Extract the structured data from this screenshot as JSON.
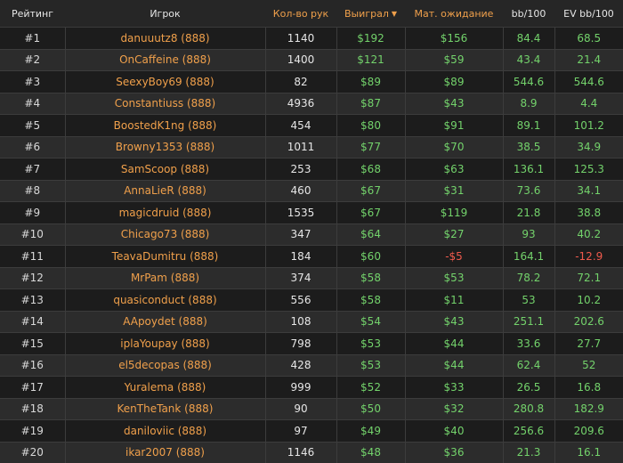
{
  "table": {
    "headers": {
      "rank": "Рейтинг",
      "player": "Игрок",
      "hands": "Кол-во рук",
      "won": "Выиграл",
      "sort_arrow": "▼",
      "ev": "Мат. ожидание",
      "bb100": "bb/100",
      "evbb100": "EV bb/100"
    },
    "colors": {
      "accent_orange": "#f0a04b",
      "positive_green": "#73d26b",
      "negative_red": "#ee5a4c"
    },
    "rows": [
      {
        "rank": "#1",
        "player": "danuuutz8 (888)",
        "hands": "1140",
        "won": "$192",
        "ev": "$156",
        "bb100": "84.4",
        "evbb100": "68.5"
      },
      {
        "rank": "#2",
        "player": "OnCaffeine (888)",
        "hands": "1400",
        "won": "$121",
        "ev": "$59",
        "bb100": "43.4",
        "evbb100": "21.4"
      },
      {
        "rank": "#3",
        "player": "SeexyBoy69 (888)",
        "hands": "82",
        "won": "$89",
        "ev": "$89",
        "bb100": "544.6",
        "evbb100": "544.6"
      },
      {
        "rank": "#4",
        "player": "Constantiuss (888)",
        "hands": "4936",
        "won": "$87",
        "ev": "$43",
        "bb100": "8.9",
        "evbb100": "4.4"
      },
      {
        "rank": "#5",
        "player": "BoostedK1ng (888)",
        "hands": "454",
        "won": "$80",
        "ev": "$91",
        "bb100": "89.1",
        "evbb100": "101.2"
      },
      {
        "rank": "#6",
        "player": "Browny1353 (888)",
        "hands": "1011",
        "won": "$77",
        "ev": "$70",
        "bb100": "38.5",
        "evbb100": "34.9"
      },
      {
        "rank": "#7",
        "player": "SamScoop (888)",
        "hands": "253",
        "won": "$68",
        "ev": "$63",
        "bb100": "136.1",
        "evbb100": "125.3"
      },
      {
        "rank": "#8",
        "player": "AnnaLieR (888)",
        "hands": "460",
        "won": "$67",
        "ev": "$31",
        "bb100": "73.6",
        "evbb100": "34.1"
      },
      {
        "rank": "#9",
        "player": "magicdruid (888)",
        "hands": "1535",
        "won": "$67",
        "ev": "$119",
        "bb100": "21.8",
        "evbb100": "38.8"
      },
      {
        "rank": "#10",
        "player": "Chicago73 (888)",
        "hands": "347",
        "won": "$64",
        "ev": "$27",
        "bb100": "93",
        "evbb100": "40.2"
      },
      {
        "rank": "#11",
        "player": "TeavaDumitru (888)",
        "hands": "184",
        "won": "$60",
        "ev": "-$5",
        "bb100": "164.1",
        "evbb100": "-12.9",
        "ev_negative": true,
        "evbb100_negative": true
      },
      {
        "rank": "#12",
        "player": "MrPam (888)",
        "hands": "374",
        "won": "$58",
        "ev": "$53",
        "bb100": "78.2",
        "evbb100": "72.1"
      },
      {
        "rank": "#13",
        "player": "quasiconduct (888)",
        "hands": "556",
        "won": "$58",
        "ev": "$11",
        "bb100": "53",
        "evbb100": "10.2"
      },
      {
        "rank": "#14",
        "player": "AApoydet (888)",
        "hands": "108",
        "won": "$54",
        "ev": "$43",
        "bb100": "251.1",
        "evbb100": "202.6"
      },
      {
        "rank": "#15",
        "player": "iplaYoupay (888)",
        "hands": "798",
        "won": "$53",
        "ev": "$44",
        "bb100": "33.6",
        "evbb100": "27.7"
      },
      {
        "rank": "#16",
        "player": "el5decopas (888)",
        "hands": "428",
        "won": "$53",
        "ev": "$44",
        "bb100": "62.4",
        "evbb100": "52"
      },
      {
        "rank": "#17",
        "player": "Yuralema (888)",
        "hands": "999",
        "won": "$52",
        "ev": "$33",
        "bb100": "26.5",
        "evbb100": "16.8"
      },
      {
        "rank": "#18",
        "player": "KenTheTank (888)",
        "hands": "90",
        "won": "$50",
        "ev": "$32",
        "bb100": "280.8",
        "evbb100": "182.9"
      },
      {
        "rank": "#19",
        "player": "daniloviic (888)",
        "hands": "97",
        "won": "$49",
        "ev": "$40",
        "bb100": "256.6",
        "evbb100": "209.6"
      },
      {
        "rank": "#20",
        "player": "ikar2007 (888)",
        "hands": "1146",
        "won": "$48",
        "ev": "$36",
        "bb100": "21.3",
        "evbb100": "16.1"
      }
    ]
  }
}
